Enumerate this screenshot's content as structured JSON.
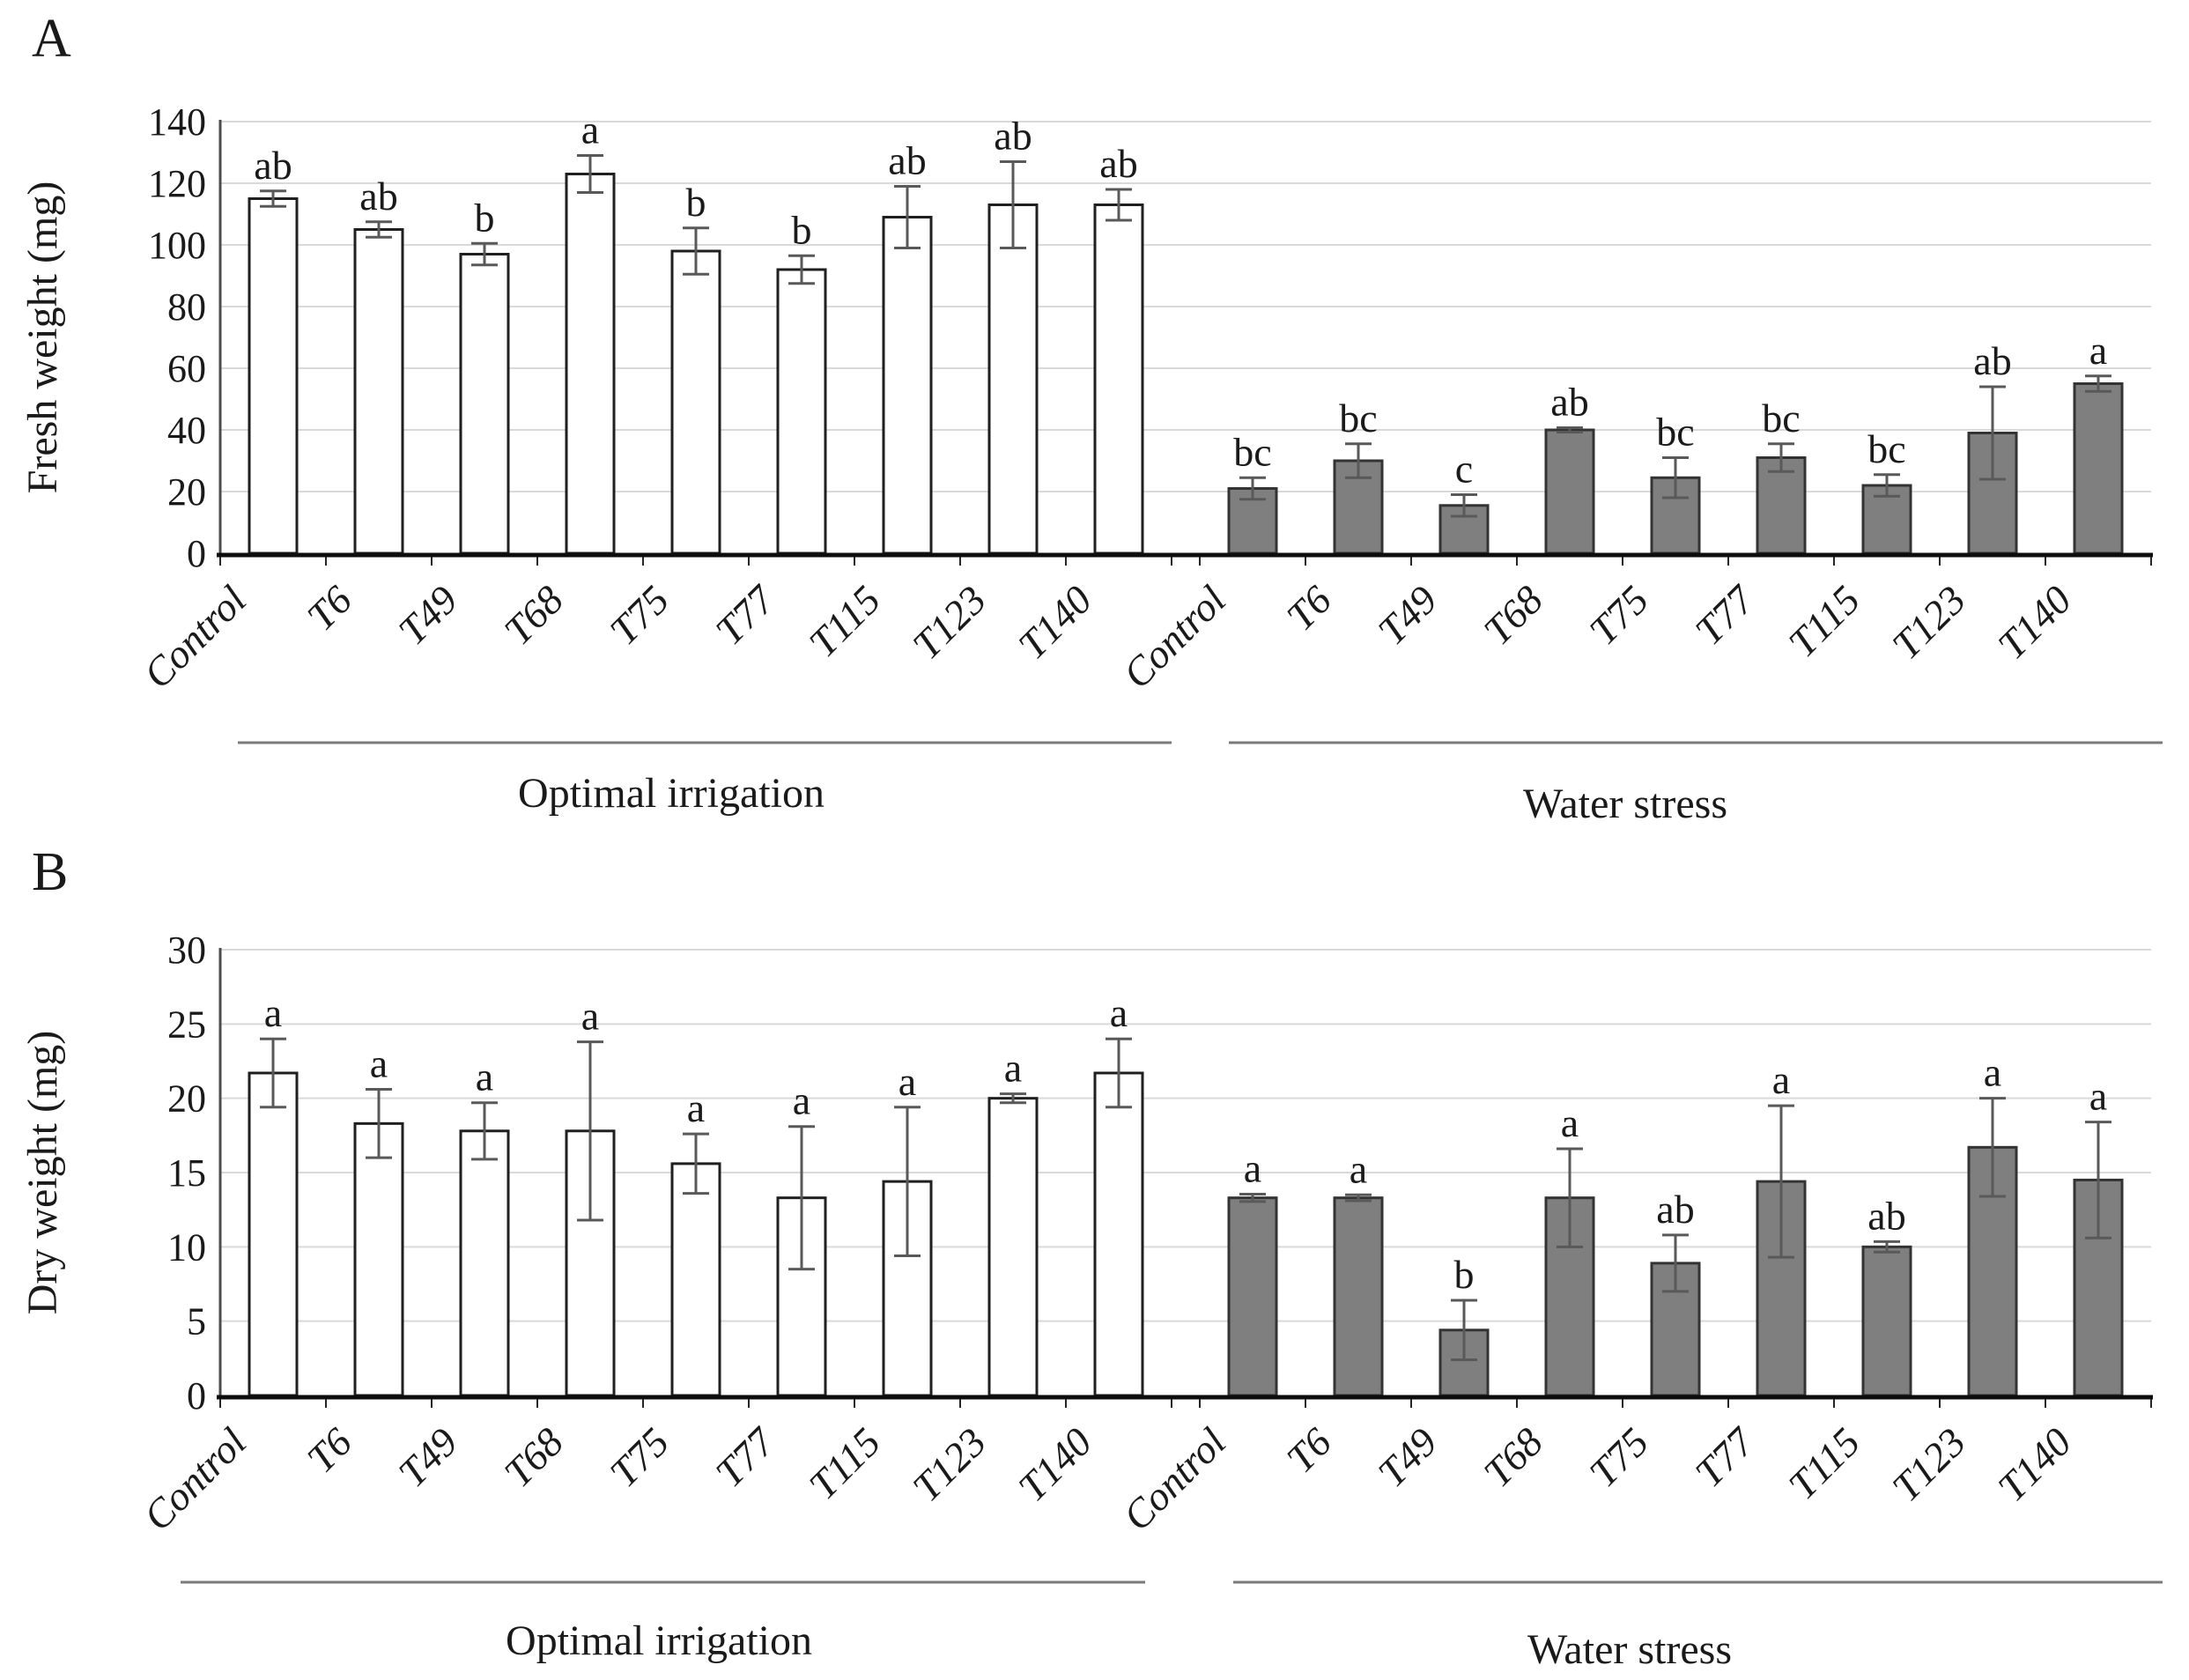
{
  "chart_data": [
    {
      "type": "bar",
      "panel_label": "A",
      "ylabel": "Fresh weight (mg)",
      "ylim": [
        0,
        140
      ],
      "ytick_step": 20,
      "ytick_labels": [
        "0",
        "20",
        "40",
        "60",
        "80",
        "100",
        "120",
        "140"
      ],
      "categories": [
        "Control",
        "T6",
        "T49",
        "T68",
        "T75",
        "T77",
        "T115",
        "T123",
        "T140"
      ],
      "grid": true,
      "legend": false,
      "error_bars": true,
      "colors": {
        "white_bar_fill": "#ffffff",
        "gray_bar_fill": "#7f7f7f",
        "bar_stroke": "#1f1f1f",
        "gridline": "#d9d9d9",
        "error_bar": "#595959",
        "axis": "#0d0d0d"
      },
      "groups": [
        {
          "name": "Optimal irrigation",
          "bar_fill": "#ffffff",
          "bar_stroke": "#1f1f1f",
          "values": [
            115,
            105,
            97,
            123,
            98,
            92,
            109,
            113,
            113
          ],
          "errors": [
            2.5,
            2.5,
            3.5,
            6,
            7.5,
            4.5,
            10,
            14,
            5
          ],
          "sig_letters": [
            "ab",
            "ab",
            "b",
            "a",
            "b",
            "b",
            "ab",
            "ab",
            "ab"
          ]
        },
        {
          "name": "Water stress",
          "bar_fill": "#7f7f7f",
          "bar_stroke": "#333333",
          "values": [
            21,
            30,
            15.5,
            40,
            24.5,
            31,
            22,
            39,
            55
          ],
          "errors": [
            3.5,
            5.5,
            3.5,
            0.7,
            6.5,
            4.5,
            3.5,
            15,
            2.5
          ],
          "sig_letters": [
            "bc",
            "bc",
            "c",
            "ab",
            "bc",
            "bc",
            "bc",
            "ab",
            "a"
          ]
        }
      ]
    },
    {
      "type": "bar",
      "panel_label": "B",
      "ylabel": "Dry weight (mg)",
      "ylim": [
        0,
        30
      ],
      "ytick_step": 5,
      "ytick_labels": [
        "0",
        "5",
        "10",
        "15",
        "20",
        "25",
        "30"
      ],
      "categories": [
        "Control",
        "T6",
        "T49",
        "T68",
        "T75",
        "T77",
        "T115",
        "T123",
        "T140"
      ],
      "grid": true,
      "legend": false,
      "error_bars": true,
      "colors": {
        "white_bar_fill": "#ffffff",
        "gray_bar_fill": "#7f7f7f",
        "bar_stroke": "#1f1f1f",
        "gridline": "#d9d9d9",
        "error_bar": "#595959",
        "axis": "#0d0d0d"
      },
      "groups": [
        {
          "name": "Optimal irrigation",
          "bar_fill": "#ffffff",
          "bar_stroke": "#1f1f1f",
          "values": [
            21.7,
            18.3,
            17.8,
            17.8,
            15.6,
            13.3,
            14.4,
            20,
            21.7
          ],
          "errors": [
            2.3,
            2.3,
            1.9,
            6,
            2,
            4.8,
            5,
            0.3,
            2.3
          ],
          "sig_letters": [
            "a",
            "a",
            "a",
            "a",
            "a",
            "a",
            "a",
            "a",
            "a"
          ]
        },
        {
          "name": "Water stress",
          "bar_fill": "#7f7f7f",
          "bar_stroke": "#333333",
          "values": [
            13.3,
            13.3,
            4.4,
            13.3,
            8.9,
            14.4,
            10,
            16.7,
            14.5
          ],
          "errors": [
            0.25,
            0.2,
            2,
            3.3,
            1.9,
            5.1,
            0.35,
            3.3,
            3.9
          ],
          "sig_letters": [
            "a",
            "a",
            "b",
            "a",
            "ab",
            "a",
            "ab",
            "a",
            "a"
          ]
        }
      ]
    }
  ]
}
